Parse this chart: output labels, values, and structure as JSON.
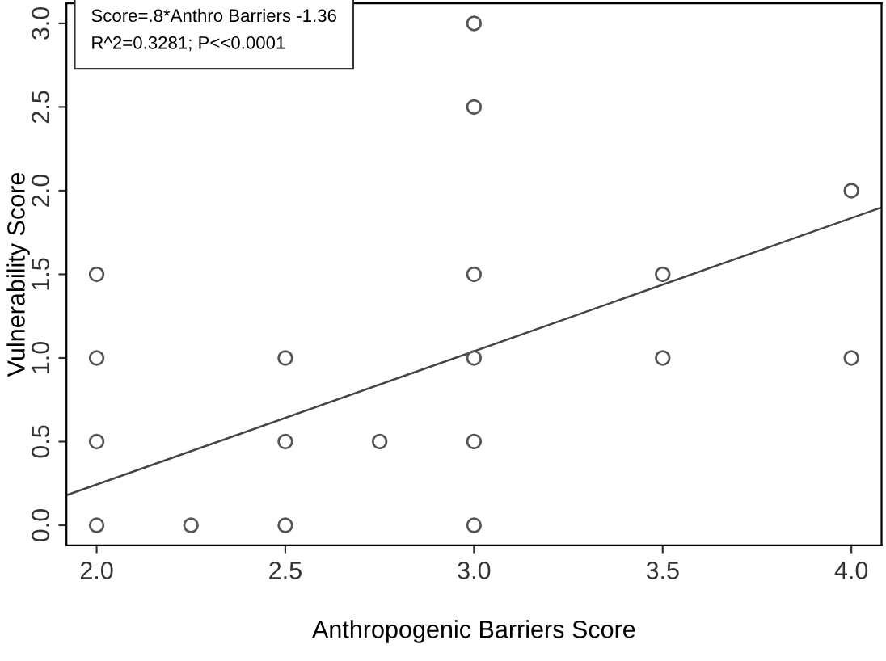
{
  "chart_data": {
    "type": "scatter",
    "xlabel": "Anthropogenic Barriers Score",
    "ylabel": "Vulnerability Score",
    "annotations": [
      "Score=.8*Anthro Barriers -1.36",
      "R^2=0.3281; P<<0.0001"
    ],
    "xlim": [
      1.92,
      4.08
    ],
    "ylim": [
      -0.12,
      3.12
    ],
    "xticks": [
      {
        "value": 2,
        "label": "2.0"
      },
      2.5,
      {
        "value": 3,
        "label": "3.0"
      },
      3.5,
      {
        "value": 4,
        "label": "4.0"
      }
    ],
    "yticks": [
      {
        "value": 0,
        "label": "0.0"
      },
      0.5,
      {
        "value": 1,
        "label": "1.0"
      },
      1.5,
      {
        "value": 2,
        "label": "2.0"
      },
      2.5,
      {
        "value": 3,
        "label": "3.0"
      }
    ],
    "marker": "circle",
    "grid": false,
    "legend": false,
    "series": [
      {
        "color": "#555555",
        "x": [
          2,
          2,
          2,
          2,
          2.25,
          2.5,
          2.5,
          2.5,
          2.75,
          3,
          3,
          3,
          3,
          3,
          3,
          3.5,
          3.5,
          4,
          4
        ],
        "values": [
          1.5,
          1,
          0.5,
          0,
          0,
          1,
          0.5,
          0,
          0.5,
          3,
          2.5,
          1.5,
          1,
          0.5,
          0,
          1.5,
          1,
          2,
          1
        ]
      },
      {
        "type": "line",
        "color": "#444444",
        "x": [
          1.92,
          4.08
        ],
        "values": [
          0.18,
          1.9
        ],
        "marker": "none",
        "line_style": "solid"
      }
    ]
  }
}
